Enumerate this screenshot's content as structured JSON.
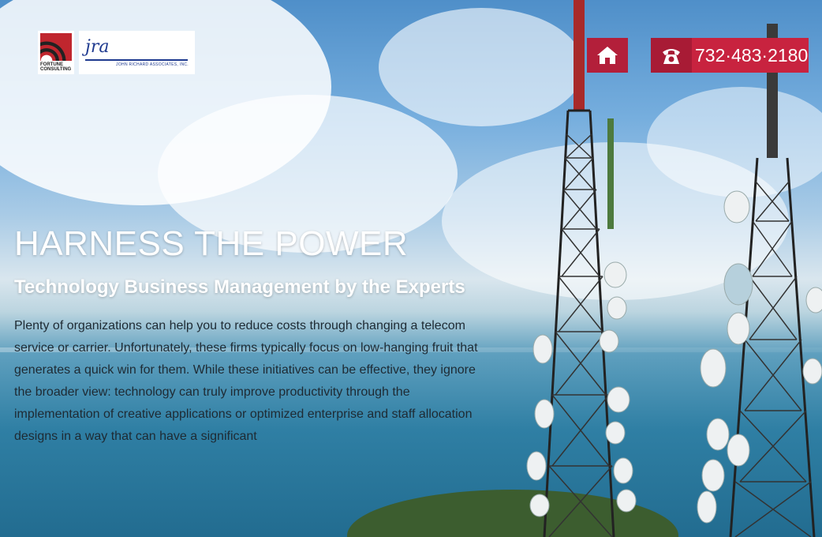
{
  "header": {
    "logos": [
      {
        "name": "fortune-consulting-logo",
        "text": "FORTUNE CONSULTING"
      },
      {
        "name": "jra-logo",
        "mark": "jra",
        "text": "JOHN RICHARD ASSOCIATES, INC."
      }
    ],
    "home_icon": "home-icon",
    "phone_icon": "telephone-icon",
    "phone_number": "732·483·2180"
  },
  "hero": {
    "headline": "HARNESS THE POWER",
    "subheadline": "Technology Business Management by the Experts",
    "body": "Plenty of organizations can help you to reduce costs through changing a telecom service or carrier. Unfortunately, these firms typically focus on low-hanging fruit that generates a quick win for them. While these initiatives can be effective, they ignore the broader view: technology can truly improve productivity through the implementation of creative applications or optimized enterprise and staff allocation designs in a way that can have a significant"
  },
  "colors": {
    "accent": "#c8233f",
    "accent_dark": "#a81b35",
    "headline": "#ffffff",
    "body_text": "#1e2a33"
  }
}
